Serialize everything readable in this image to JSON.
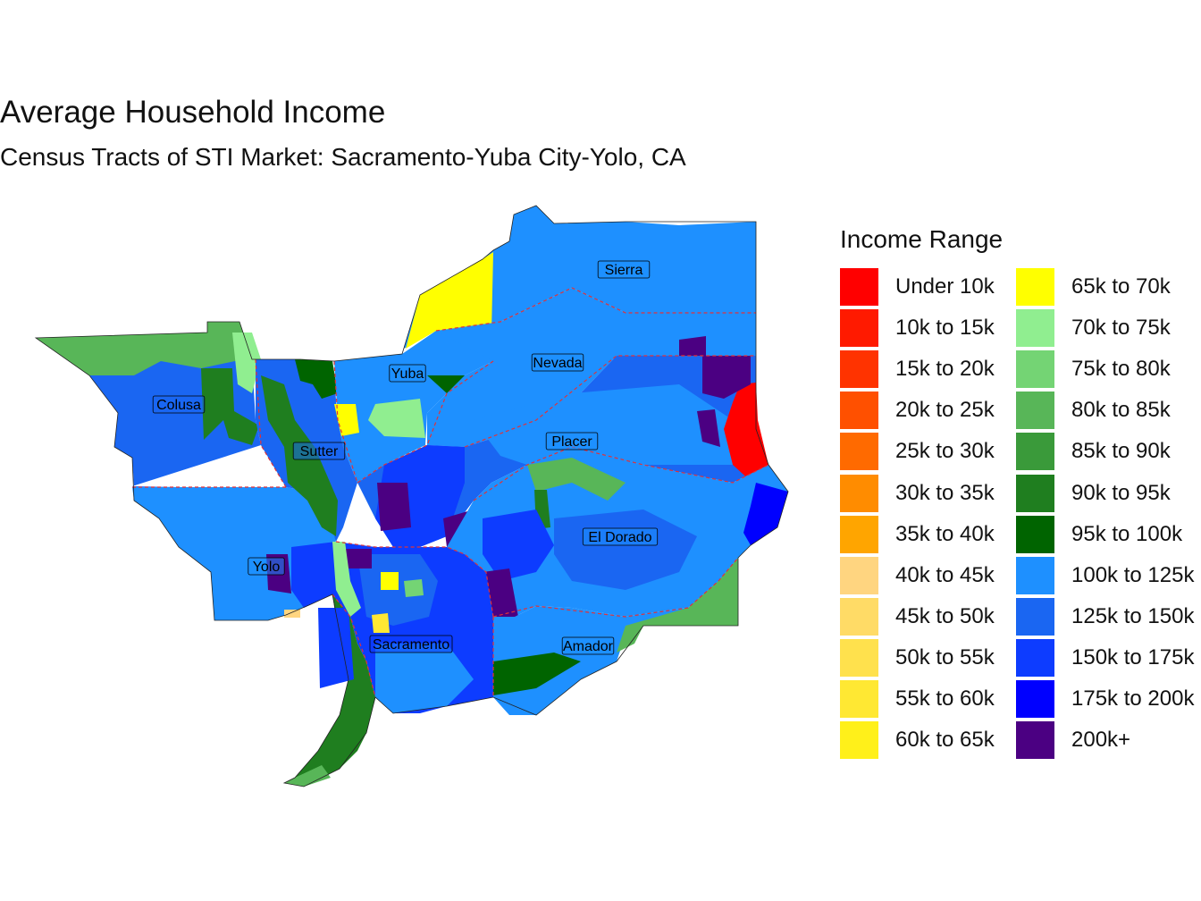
{
  "title": "Average Household Income",
  "subtitle": "Census Tracts of STI Market: Sacramento-Yuba City-Yolo, CA",
  "legend": {
    "title": "Income Range",
    "items": [
      {
        "label": "Under 10k",
        "color": "#FF0000"
      },
      {
        "label": "10k to 15k",
        "color": "#FF1A00"
      },
      {
        "label": "15k to 20k",
        "color": "#FF3300"
      },
      {
        "label": "20k to 25k",
        "color": "#FF5000"
      },
      {
        "label": "25k to 30k",
        "color": "#FF6A00"
      },
      {
        "label": "30k to 35k",
        "color": "#FF8C00"
      },
      {
        "label": "35k to 40k",
        "color": "#FFA500"
      },
      {
        "label": "40k to 45k",
        "color": "#FFD580"
      },
      {
        "label": "45k to 50k",
        "color": "#FFDB66"
      },
      {
        "label": "50k to 55k",
        "color": "#FFE14D"
      },
      {
        "label": "55k to 60k",
        "color": "#FFE833"
      },
      {
        "label": "60k to 65k",
        "color": "#FFF01A"
      },
      {
        "label": "65k to 70k",
        "color": "#FFFF00"
      },
      {
        "label": "70k to 75k",
        "color": "#90EE90"
      },
      {
        "label": "75k to 80k",
        "color": "#74D474"
      },
      {
        "label": "80k to 85k",
        "color": "#58B658"
      },
      {
        "label": "85k to 90k",
        "color": "#3A9A3A"
      },
      {
        "label": "90k to 95k",
        "color": "#1F7E1F"
      },
      {
        "label": "95k to 100k",
        "color": "#006400"
      },
      {
        "label": "100k to 125k",
        "color": "#1E90FF"
      },
      {
        "label": "125k to 150k",
        "color": "#1A66F2"
      },
      {
        "label": "150k to 175k",
        "color": "#0D3CFF"
      },
      {
        "label": "175k to 200k",
        "color": "#0000FF"
      },
      {
        "label": "200k+",
        "color": "#4B0082"
      }
    ]
  },
  "counties": [
    {
      "name": "Sierra",
      "color": "#1E90FF"
    },
    {
      "name": "Yuba",
      "color": "#1E90FF"
    },
    {
      "name": "Nevada",
      "color": "#1E90FF"
    },
    {
      "name": "Colusa",
      "color": "#1A66F2"
    },
    {
      "name": "Placer",
      "color": "#1E90FF"
    },
    {
      "name": "Sutter",
      "color": "#1A66F2"
    },
    {
      "name": "El Dorado",
      "color": "#1E90FF"
    },
    {
      "name": "Yolo",
      "color": "#1E90FF"
    },
    {
      "name": "Sacramento",
      "color": "#0D3CFF"
    },
    {
      "name": "Amador",
      "color": "#1E90FF"
    }
  ]
}
